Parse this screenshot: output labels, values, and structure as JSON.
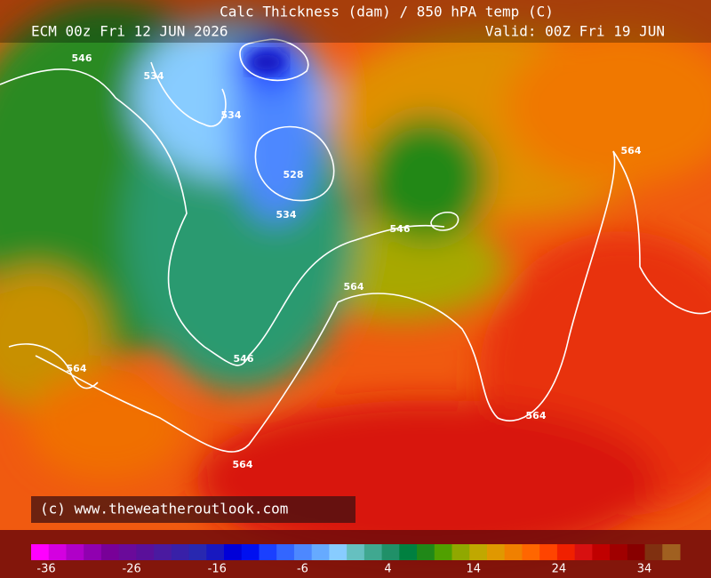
{
  "header": {
    "title": "Calc Thickness (dam) / 850 hPA temp (C)",
    "run": "ECM 00z Fri 12 JUN 2026",
    "valid": "Valid: 00Z Fri 19 JUN"
  },
  "contour_labels": [
    546,
    534,
    534,
    528,
    534,
    546,
    564,
    564,
    546,
    564,
    564,
    564
  ],
  "copyright": "(c) www.theweatheroutlook.com",
  "colorbar": {
    "labels": [
      -36,
      -26,
      -16,
      -6,
      4,
      14,
      24,
      34
    ],
    "colors": [
      "#ff00ff",
      "#d400e0",
      "#b000c8",
      "#9000b0",
      "#780098",
      "#6a0a9a",
      "#5a109a",
      "#4a1aa0",
      "#3820a8",
      "#2828b0",
      "#1818c0",
      "#0000d8",
      "#0010f0",
      "#1a40ff",
      "#3366ff",
      "#4d88ff",
      "#66aaff",
      "#88ccff",
      "#66c0c0",
      "#40a890",
      "#209068",
      "#008040",
      "#208818",
      "#50a000",
      "#90a800",
      "#c0a800",
      "#e09800",
      "#f08000",
      "#ff6600",
      "#ff4400",
      "#f02000",
      "#d81010",
      "#c00000",
      "#a00000",
      "#880000",
      "#803010",
      "#a06020"
    ]
  }
}
